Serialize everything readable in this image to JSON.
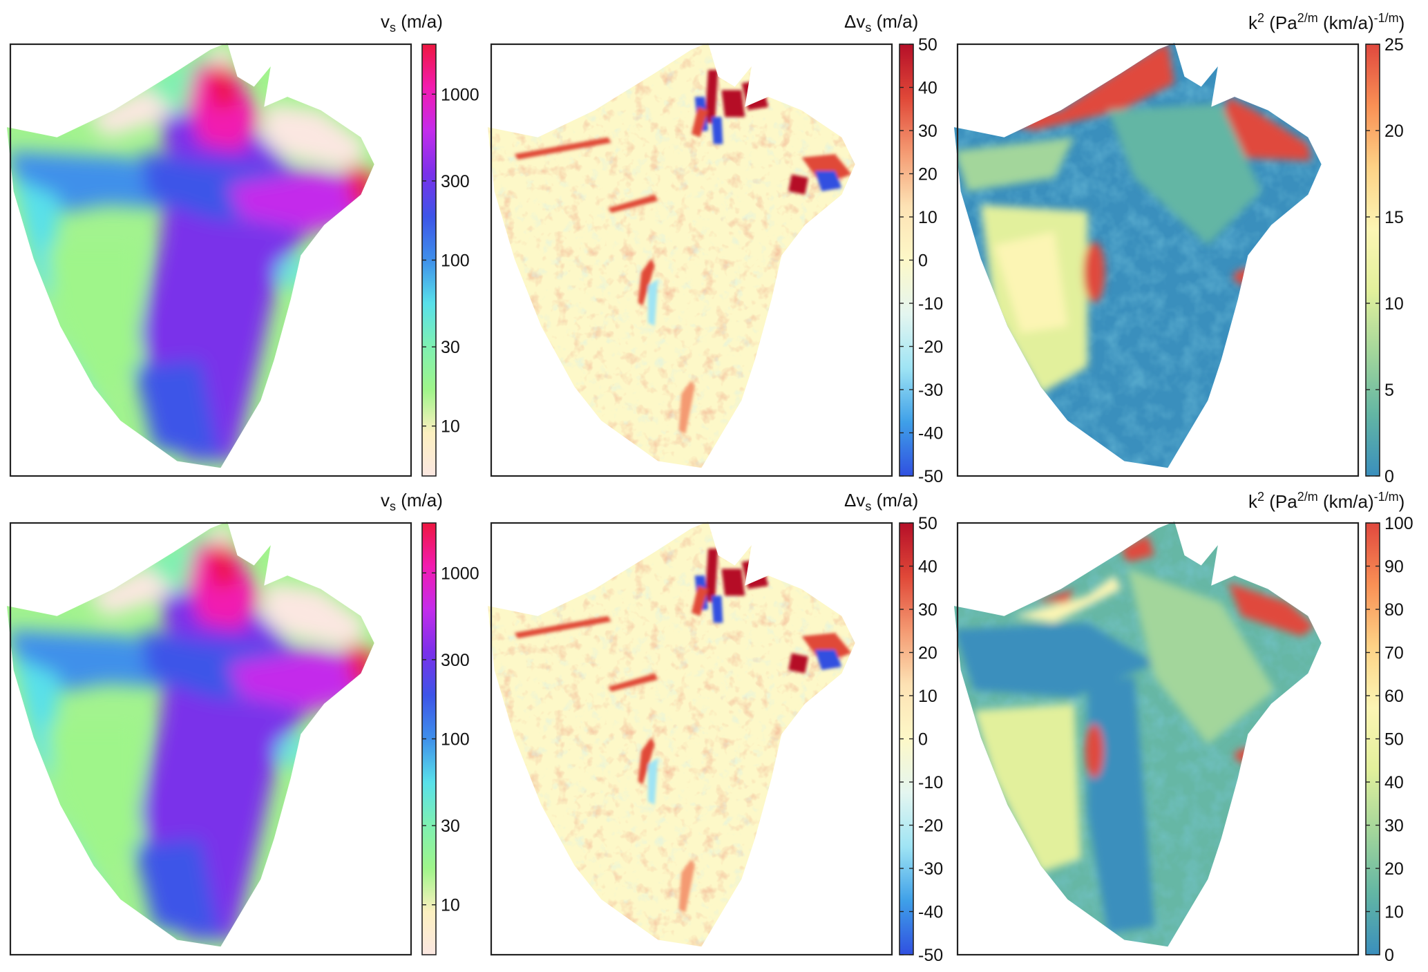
{
  "figure": {
    "rows": 2,
    "columns": 3,
    "colormaps": {
      "velocity": [
        "#fbe7e1",
        "#fcf0c0",
        "#9ff58a",
        "#7ff0b2",
        "#58e0ea",
        "#3f90ea",
        "#3d55e8",
        "#7a31ea",
        "#c42ceb",
        "#f21bb0",
        "#ee1740"
      ],
      "difference": [
        "#3050e0",
        "#3fa0e8",
        "#9fe4f4",
        "#e4f6f0",
        "#fdf8c8",
        "#fde2b4",
        "#f49a72",
        "#e04838",
        "#b50f28"
      ],
      "spectral": [
        "#3a8fbd",
        "#63b6a4",
        "#a3d69b",
        "#e2f09c",
        "#fcf5b4",
        "#fdd286",
        "#f99055",
        "#e0483e"
      ]
    }
  },
  "chart_data": [
    {
      "type": "heatmap",
      "panel": "top-left",
      "quantity": "surface velocity",
      "colorbar": {
        "label_main": "v",
        "label_sub": "s",
        "label_unit": "(m/a)",
        "scale": "log",
        "range": [
          5,
          2000
        ],
        "ticks": [
          10,
          30,
          100,
          300,
          1000
        ],
        "tick_labels": [
          "10",
          "30",
          "100",
          "300",
          "1000"
        ]
      }
    },
    {
      "type": "heatmap",
      "panel": "top-middle",
      "quantity": "velocity difference",
      "colorbar": {
        "label_main": "Δv",
        "label_sub": "s",
        "label_unit": "(m/a)",
        "scale": "linear",
        "range": [
          -50,
          50
        ],
        "ticks": [
          -50,
          -40,
          -30,
          -20,
          -10,
          0,
          10,
          20,
          30,
          40,
          50
        ],
        "tick_labels": [
          "-50",
          "-40",
          "-30",
          "-20",
          "-10",
          "0",
          "10",
          "20",
          "30",
          "40",
          "50"
        ]
      }
    },
    {
      "type": "heatmap",
      "panel": "top-right",
      "quantity": "friction coefficient squared",
      "colorbar": {
        "label_main": "k",
        "label_sup": "2",
        "label_pa": "(Pa",
        "label_exp1": "2/m",
        "label_kma": "(km/a)",
        "label_exp2": "-1/m",
        "label_close": ")",
        "scale": "linear",
        "range": [
          0,
          25
        ],
        "ticks": [
          0,
          5,
          10,
          15,
          20,
          25
        ],
        "tick_labels": [
          "0",
          "5",
          "10",
          "15",
          "20",
          "25"
        ]
      }
    },
    {
      "type": "heatmap",
      "panel": "bottom-left",
      "quantity": "surface velocity",
      "colorbar": {
        "label_main": "v",
        "label_sub": "s",
        "label_unit": "(m/a)",
        "scale": "log",
        "range": [
          5,
          2000
        ],
        "ticks": [
          10,
          30,
          100,
          300,
          1000
        ],
        "tick_labels": [
          "10",
          "30",
          "100",
          "300",
          "1000"
        ]
      }
    },
    {
      "type": "heatmap",
      "panel": "bottom-middle",
      "quantity": "velocity difference",
      "colorbar": {
        "label_main": "Δv",
        "label_sub": "s",
        "label_unit": "(m/a)",
        "scale": "linear",
        "range": [
          -50,
          50
        ],
        "ticks": [
          -50,
          -40,
          -30,
          -20,
          -10,
          0,
          10,
          20,
          30,
          40,
          50
        ],
        "tick_labels": [
          "-50",
          "-40",
          "-30",
          "-20",
          "-10",
          "0",
          "10",
          "20",
          "30",
          "40",
          "50"
        ]
      }
    },
    {
      "type": "heatmap",
      "panel": "bottom-right",
      "quantity": "friction coefficient squared",
      "colorbar": {
        "label_main": "k",
        "label_sup": "2",
        "label_pa": "(Pa",
        "label_exp1": "2/m",
        "label_kma": "(km/a)",
        "label_exp2": "-1/m",
        "label_close": ")",
        "scale": "linear",
        "range": [
          0,
          100
        ],
        "ticks": [
          0,
          10,
          20,
          30,
          40,
          50,
          60,
          70,
          80,
          90,
          100
        ],
        "tick_labels": [
          "0",
          "10",
          "20",
          "30",
          "40",
          "50",
          "60",
          "70",
          "80",
          "90",
          "100"
        ]
      }
    }
  ]
}
